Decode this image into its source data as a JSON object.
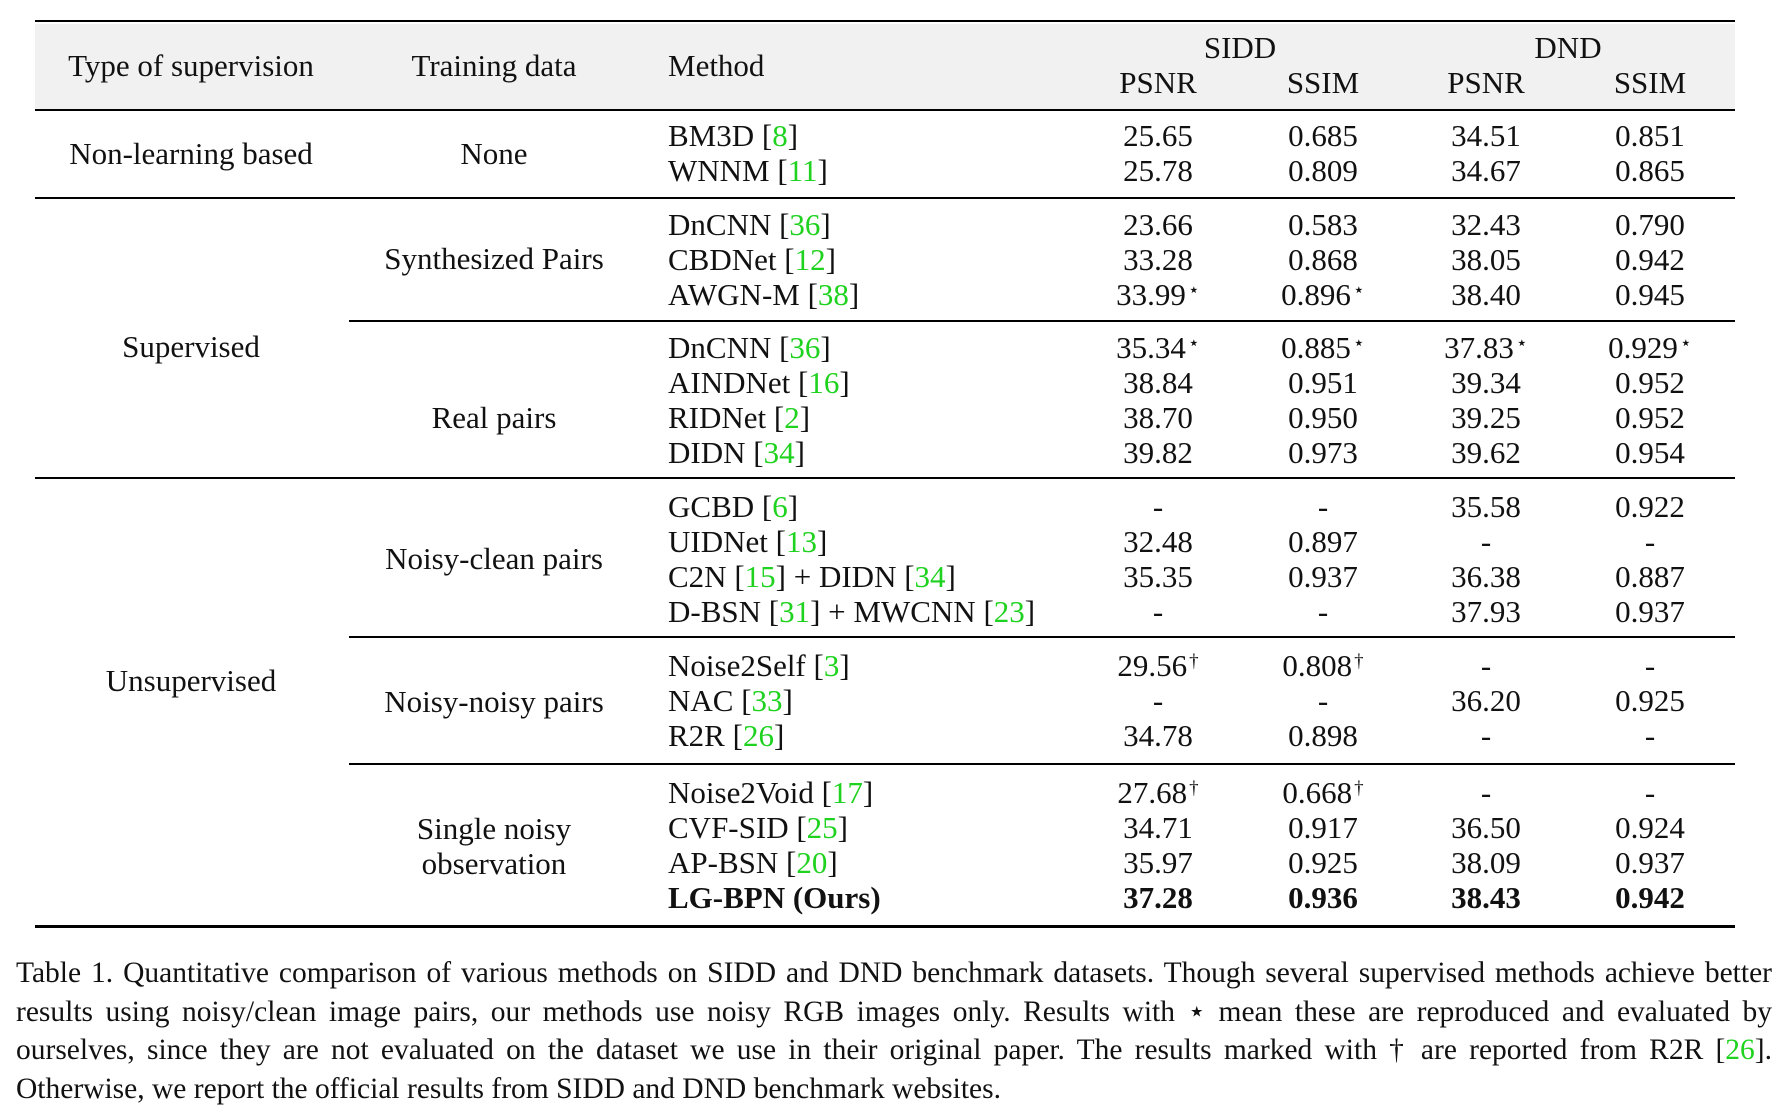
{
  "headers": {
    "type": "Type of supervision",
    "training": "Training data",
    "method": "Method",
    "sidd": "SIDD",
    "dnd": "DND",
    "sidd_psnr": "PSNR",
    "sidd_ssim": "SSIM",
    "dnd_psnr": "PSNR",
    "dnd_ssim": "SSIM"
  },
  "groups": {
    "nonlearning": "Non-learning based",
    "supervised": "Supervised",
    "unsupervised": "Unsupervised"
  },
  "training": {
    "none": "None",
    "synth": "Synthesized Pairs",
    "real": "Real pairs",
    "noisyclean": "Noisy-clean pairs",
    "noisynoisy": "Noisy-noisy pairs",
    "single1": "Single noisy",
    "single2": "observation"
  },
  "rows": [
    {
      "name": "BM3D",
      "cite": "8",
      "sp": "25.65",
      "ss": "0.685",
      "dp": "34.51",
      "ds": "0.851"
    },
    {
      "name": "WNNM",
      "cite": "11",
      "sp": "25.78",
      "ss": "0.809",
      "dp": "34.67",
      "ds": "0.865"
    },
    {
      "name": "DnCNN",
      "cite": "36",
      "sp": "23.66",
      "ss": "0.583",
      "dp": "32.43",
      "ds": "0.790"
    },
    {
      "name": "CBDNet",
      "cite": "12",
      "sp": "33.28",
      "ss": "0.868",
      "dp": "38.05",
      "ds": "0.942"
    },
    {
      "name": "AWGN-M",
      "cite": "38",
      "sp": "33.99",
      "spm": "⋆",
      "ss": "0.896",
      "ssm": "⋆",
      "dp": "38.40",
      "ds": "0.945"
    },
    {
      "name": "DnCNN",
      "cite": "36",
      "sp": "35.34",
      "spm": "⋆",
      "ss": "0.885",
      "ssm": "⋆",
      "dp": "37.83",
      "dpm": "⋆",
      "ds": "0.929",
      "dsm": "⋆"
    },
    {
      "name": "AINDNet",
      "cite": "16",
      "sp": "38.84",
      "ss": "0.951",
      "dp": "39.34",
      "ds": "0.952"
    },
    {
      "name": "RIDNet",
      "cite": "2",
      "sp": "38.70",
      "ss": "0.950",
      "dp": "39.25",
      "ds": "0.952"
    },
    {
      "name": "DIDN",
      "cite": "34",
      "sp": "39.82",
      "ss": "0.973",
      "dp": "39.62",
      "ds": "0.954"
    },
    {
      "name": "GCBD",
      "cite": "6",
      "sp": "-",
      "ss": "-",
      "dp": "35.58",
      "ds": "0.922"
    },
    {
      "name": "UIDNet",
      "cite": "13",
      "sp": "32.48",
      "ss": "0.897",
      "dp": "-",
      "ds": "-"
    },
    {
      "name": "C2N",
      "cite": "15",
      "join": " + ",
      "name2": "DIDN",
      "cite2": "34",
      "sp": "35.35",
      "ss": "0.937",
      "dp": "36.38",
      "ds": "0.887"
    },
    {
      "name": "D-BSN",
      "cite": "31",
      "join": " + ",
      "name2": "MWCNN",
      "cite2": "23",
      "sp": "-",
      "ss": "-",
      "dp": "37.93",
      "ds": "0.937"
    },
    {
      "name": "Noise2Self",
      "cite": "3",
      "sp": "29.56",
      "spm": "†",
      "ss": "0.808",
      "ssm": "†",
      "dp": "-",
      "ds": "-"
    },
    {
      "name": "NAC",
      "cite": "33",
      "sp": "-",
      "ss": "-",
      "dp": "36.20",
      "ds": "0.925"
    },
    {
      "name": "R2R",
      "cite": "26",
      "sp": "34.78",
      "ss": "0.898",
      "dp": "-",
      "ds": "-"
    },
    {
      "name": "Noise2Void",
      "cite": "17",
      "sp": "27.68",
      "spm": "†",
      "ss": "0.668",
      "ssm": "†",
      "dp": "-",
      "ds": "-"
    },
    {
      "name": "CVF-SID",
      "cite": "25",
      "sp": "34.71",
      "ss": "0.917",
      "dp": "36.50",
      "ds": "0.924"
    },
    {
      "name": "AP-BSN",
      "cite": "20",
      "sp": "35.97",
      "ss": "0.925",
      "dp": "38.09",
      "ds": "0.937"
    },
    {
      "name": "LG-BPN (Ours)",
      "sp": "37.28",
      "ss": "0.936",
      "dp": "38.43",
      "ds": "0.942",
      "bold": true
    }
  ],
  "caption": {
    "p1": "Table 1. Quantitative comparison of various methods on SIDD and DND benchmark datasets. Though several supervised methods achieve better results using noisy/clean image pairs, our methods use noisy RGB images only.  Results with ",
    "star": "⋆",
    "p2": " mean these are reproduced and evaluated by ourselves, since they are not evaluated on the dataset we use in their original paper. The results marked with ",
    "dagger": "†",
    "p3": " are reported from R2R [",
    "cite": "26",
    "p4": "]. Otherwise, we report the official results from SIDD and DND benchmark websites."
  }
}
